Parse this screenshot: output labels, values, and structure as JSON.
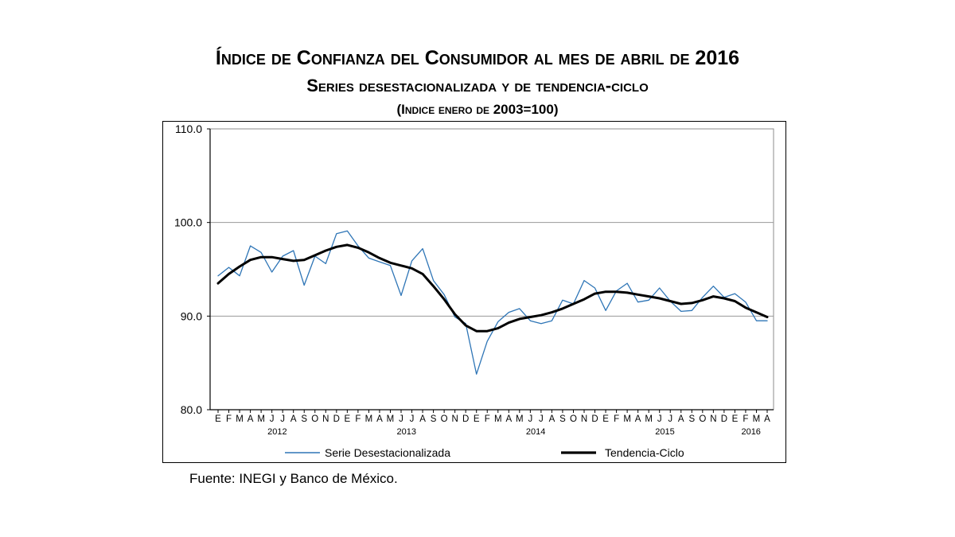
{
  "title": {
    "line1": "Índice de Confianza del Consumidor al mes de abril de 2016",
    "line2": "Series desestacionalizada y de tendencia-ciclo",
    "line3": "(Indice enero de 2003=100)"
  },
  "chart_data": {
    "type": "line",
    "title": "Índice de Confianza del Consumidor al mes de abril de 2016",
    "subtitle": "Series desestacionalizada y de tendencia-ciclo (Indice enero de 2003=100)",
    "xlabel": "",
    "ylabel": "",
    "ylim": [
      80.0,
      110.0
    ],
    "yticks": [
      "80.0",
      "90.0",
      "100.0",
      "110.0"
    ],
    "grid": true,
    "legend_position": "bottom",
    "x_month_labels": [
      "E",
      "F",
      "M",
      "A",
      "M",
      "J",
      "J",
      "A",
      "S",
      "O",
      "N",
      "D",
      "E",
      "F",
      "M",
      "A",
      "M",
      "J",
      "J",
      "A",
      "S",
      "O",
      "N",
      "D",
      "E",
      "F",
      "M",
      "A",
      "M",
      "J",
      "J",
      "A",
      "S",
      "O",
      "N",
      "D",
      "E",
      "F",
      "M",
      "A",
      "M",
      "J",
      "J",
      "A",
      "S",
      "O",
      "N",
      "D",
      "E",
      "F",
      "M",
      "A"
    ],
    "x_year_labels": [
      {
        "label": "2012",
        "index": 5.5
      },
      {
        "label": "2013",
        "index": 17.5
      },
      {
        "label": "2014",
        "index": 29.5
      },
      {
        "label": "2015",
        "index": 41.5
      },
      {
        "label": "2016",
        "index": 49.5
      }
    ],
    "series": [
      {
        "name": "Serie Desestacionalizada",
        "color": "#2e75b6",
        "values": [
          94.3,
          95.2,
          94.3,
          97.5,
          96.8,
          94.7,
          96.4,
          97.0,
          93.3,
          96.4,
          95.6,
          98.8,
          99.1,
          97.5,
          96.2,
          95.8,
          95.4,
          92.2,
          95.9,
          97.2,
          93.8,
          92.3,
          89.9,
          89.2,
          83.8,
          87.3,
          89.4,
          90.4,
          90.8,
          89.5,
          89.2,
          89.5,
          91.7,
          91.3,
          93.8,
          93.0,
          90.6,
          92.7,
          93.5,
          91.5,
          91.7,
          93.0,
          91.6,
          90.5,
          90.6,
          92.0,
          93.2,
          92.0,
          92.4,
          91.5,
          89.5,
          89.5
        ]
      },
      {
        "name": "Tendencia-Ciclo",
        "color": "#000000",
        "values": [
          93.5,
          94.5,
          95.3,
          96.0,
          96.3,
          96.3,
          96.1,
          95.9,
          96.0,
          96.5,
          97.0,
          97.4,
          97.6,
          97.3,
          96.8,
          96.2,
          95.7,
          95.4,
          95.1,
          94.5,
          93.2,
          91.8,
          90.2,
          89.0,
          88.4,
          88.4,
          88.7,
          89.3,
          89.7,
          89.9,
          90.1,
          90.4,
          90.8,
          91.3,
          91.8,
          92.4,
          92.6,
          92.6,
          92.5,
          92.3,
          92.1,
          91.9,
          91.6,
          91.3,
          91.4,
          91.7,
          92.1,
          91.9,
          91.6,
          90.9,
          90.4,
          89.9
        ]
      }
    ]
  },
  "source": "Fuente: INEGI y Banco de México."
}
